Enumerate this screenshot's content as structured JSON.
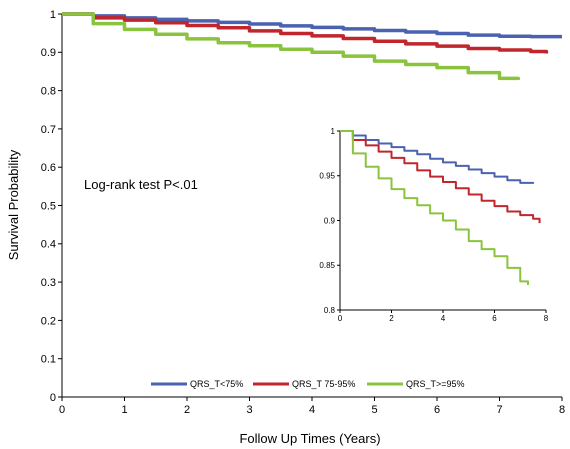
{
  "chart_data": [
    {
      "type": "line",
      "role": "main",
      "xlabel": "Follow Up Times (Years)",
      "ylabel": "Survival Probability",
      "xlim": [
        0,
        8
      ],
      "ylim": [
        0,
        1
      ],
      "xticks": [
        "0",
        "1",
        "2",
        "3",
        "4",
        "5",
        "6",
        "7",
        "8"
      ],
      "yticks": [
        "0",
        "0.1",
        "0.2",
        "0.3",
        "0.4",
        "0.5",
        "0.6",
        "0.7",
        "0.8",
        "0.9",
        "1"
      ],
      "annotation": "Log-rank test  P<.01",
      "grid": false,
      "legend_position": "bottom-center",
      "series": [
        {
          "name": "QRS_T<75%",
          "color": "#4a62b0",
          "x": [
            0,
            0.5,
            1,
            1.5,
            2,
            2.5,
            3,
            3.5,
            4,
            4.5,
            5,
            5.5,
            6,
            6.5,
            7,
            7.5,
            8
          ],
          "y": [
            1,
            0.995,
            0.99,
            0.986,
            0.982,
            0.978,
            0.974,
            0.969,
            0.965,
            0.961,
            0.957,
            0.953,
            0.949,
            0.945,
            0.942,
            0.941,
            0.941
          ]
        },
        {
          "name": "QRS_T 75-95%",
          "color": "#c0262c",
          "x": [
            0,
            0.5,
            1,
            1.5,
            2,
            2.5,
            3,
            3.5,
            4,
            4.5,
            5,
            5.5,
            6,
            6.5,
            7,
            7.5,
            7.75
          ],
          "y": [
            1,
            0.99,
            0.984,
            0.977,
            0.97,
            0.964,
            0.956,
            0.949,
            0.943,
            0.936,
            0.929,
            0.922,
            0.916,
            0.91,
            0.906,
            0.902,
            0.897
          ]
        },
        {
          "name": "QRS_T>=95%",
          "color": "#8ac43f",
          "x": [
            0,
            0.5,
            1,
            1.5,
            2,
            2.5,
            3,
            3.5,
            4,
            4.5,
            5,
            5.5,
            6,
            6.5,
            7,
            7.3
          ],
          "y": [
            1,
            0.975,
            0.96,
            0.947,
            0.935,
            0.925,
            0.917,
            0.908,
            0.9,
            0.89,
            0.877,
            0.868,
            0.86,
            0.847,
            0.832,
            0.828
          ]
        }
      ]
    },
    {
      "type": "line",
      "role": "inset",
      "xlim": [
        0,
        8
      ],
      "ylim": [
        0.8,
        1
      ],
      "xticks": [
        "0",
        "2",
        "4",
        "6",
        "8"
      ],
      "yticks": [
        "0.8",
        "0.85",
        "0.9",
        "0.95",
        "1"
      ],
      "series": [
        {
          "name": "QRS_T<75%",
          "color": "#4a62b0",
          "x": [
            0,
            0.5,
            1,
            1.5,
            2,
            2.5,
            3,
            3.5,
            4,
            4.5,
            5,
            5.5,
            6,
            6.5,
            7,
            7.5
          ],
          "y": [
            1,
            0.995,
            0.99,
            0.986,
            0.982,
            0.978,
            0.974,
            0.969,
            0.965,
            0.961,
            0.957,
            0.953,
            0.949,
            0.945,
            0.942,
            0.941
          ]
        },
        {
          "name": "QRS_T 75-95%",
          "color": "#c0262c",
          "x": [
            0,
            0.5,
            1,
            1.5,
            2,
            2.5,
            3,
            3.5,
            4,
            4.5,
            5,
            5.5,
            6,
            6.5,
            7,
            7.5,
            7.75
          ],
          "y": [
            1,
            0.99,
            0.984,
            0.977,
            0.97,
            0.964,
            0.956,
            0.949,
            0.943,
            0.936,
            0.929,
            0.922,
            0.916,
            0.91,
            0.906,
            0.902,
            0.897
          ]
        },
        {
          "name": "QRS_T>=95%",
          "color": "#8ac43f",
          "x": [
            0,
            0.5,
            1,
            1.5,
            2,
            2.5,
            3,
            3.5,
            4,
            4.5,
            5,
            5.5,
            6,
            6.5,
            7,
            7.3
          ],
          "y": [
            1,
            0.975,
            0.96,
            0.947,
            0.935,
            0.925,
            0.917,
            0.908,
            0.9,
            0.89,
            0.877,
            0.868,
            0.86,
            0.847,
            0.832,
            0.828
          ]
        }
      ]
    }
  ]
}
